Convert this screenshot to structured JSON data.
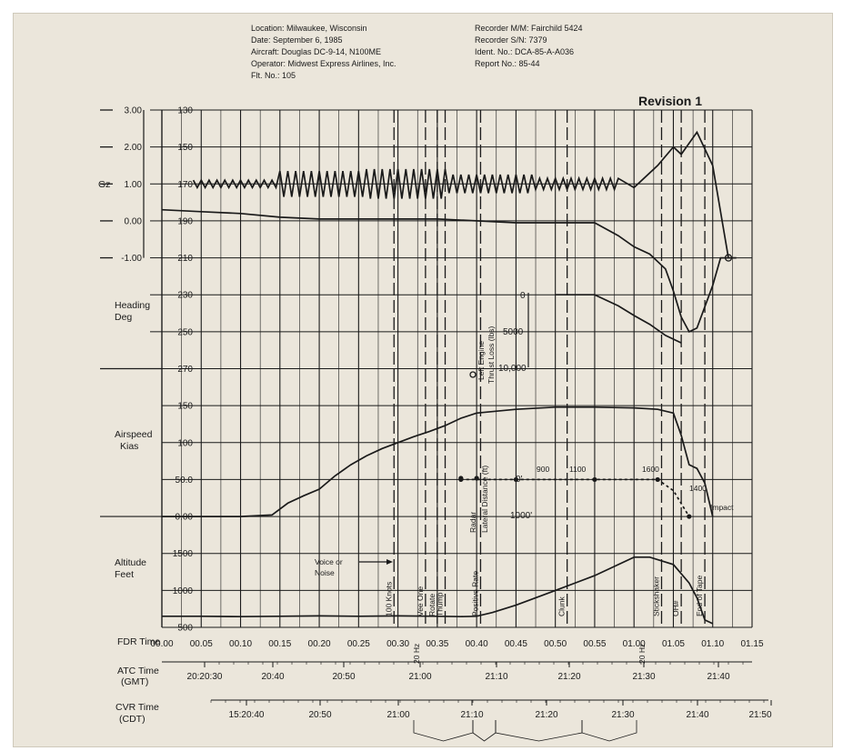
{
  "header": {
    "left": [
      "Location: Milwaukee, Wisconsin",
      "Date: September 6, 1985",
      "Aircraft: Douglas DC-9-14, N100ME",
      "Operator: Midwest Express Airlines, Inc.",
      "Flt. No.: 105"
    ],
    "right": [
      "Recorder M/M: Fairchild 5424",
      "Recorder S/N: 7379",
      "Ident. No.: DCA-85-A-A036",
      "Report No.: 85-44"
    ],
    "revision": "Revision 1"
  },
  "axes": {
    "gz": {
      "label": "Gz",
      "ticks": [
        "3.00",
        "2.00",
        "1.00",
        "0.00",
        "-1.00"
      ]
    },
    "heading": {
      "label_lines": [
        "Heading",
        "Deg"
      ],
      "ticks": [
        "130",
        "150",
        "170",
        "190",
        "210",
        "230",
        "250",
        "270"
      ]
    },
    "airspeed": {
      "label_lines": [
        "Airspeed",
        "Kias"
      ],
      "ticks": [
        "150",
        "100",
        "50.0",
        "0.00"
      ]
    },
    "altitude": {
      "label_lines": [
        "Altitude",
        "Feet"
      ],
      "ticks": [
        "1500",
        "1000",
        "500"
      ]
    },
    "thrust": {
      "label_lines": [
        "Left Engine",
        "Thrust Loss (lbs)"
      ],
      "ticks": [
        "0",
        "5000",
        "10,000"
      ]
    },
    "lateral": {
      "label": "Lateral Distance (ft)",
      "ticks": [
        "0'",
        "1000'"
      ]
    }
  },
  "fdr_time": {
    "label": "FDR Time",
    "ticks": [
      "00.00",
      "00.05",
      "00.10",
      "00.15",
      "00.20",
      "00.25",
      "00.30",
      "00.35",
      "00.40",
      "00.45",
      "00.50",
      "00.55",
      "01.00",
      "01.05",
      "01.10",
      "01.15"
    ]
  },
  "atc_time": {
    "label_lines": [
      "ATC Time",
      "(GMT)"
    ],
    "ticks": [
      "20:20:30",
      "20:40",
      "20:50",
      "21:00",
      "21:10",
      "21:20",
      "21:30",
      "21:40"
    ]
  },
  "cvr_time": {
    "label_lines": [
      "CVR Time",
      "(CDT)"
    ],
    "ticks": [
      "15:20:40",
      "20:50",
      "21:00",
      "21:10",
      "21:20",
      "21:30",
      "21:40",
      "21:50"
    ]
  },
  "events": [
    {
      "label": "100 Knots",
      "t": 29.5
    },
    {
      "label": "Vee One",
      "t": 33.5
    },
    {
      "label": "Rotate",
      "t": 35.0
    },
    {
      "label": "Thump",
      "t": 36.0
    },
    {
      "label": "Positive Rate",
      "t": 40.5
    },
    {
      "label": "Clunk",
      "t": 51.5
    },
    {
      "label": "Stickshaker",
      "t": 63.5
    },
    {
      "label": "OH#",
      "t": 66.0
    },
    {
      "label": "End of Tape",
      "t": 69.0
    }
  ],
  "annotations": {
    "voice": [
      "Voice or",
      "Noise"
    ],
    "radar": "Radar",
    "impact": "Impact",
    "sec_mark": "20 Hz",
    "distances": [
      "900",
      "1100",
      "1600",
      "1400"
    ]
  },
  "chart_data": {
    "type": "line",
    "x_unit": "FDR time (seconds)",
    "xlim": [
      0,
      75
    ],
    "series": [
      {
        "name": "Gz",
        "scale": "gz",
        "x": [
          0,
          5,
          10,
          15,
          20,
          25,
          30,
          35,
          40,
          45,
          50,
          55,
          57,
          60,
          63,
          65,
          66,
          68,
          70,
          72
        ],
        "y": [
          1.0,
          1.0,
          1.0,
          1.0,
          1.0,
          1.0,
          1.0,
          1.0,
          1.0,
          1.0,
          1.0,
          1.0,
          0.6,
          0.9,
          1.5,
          2.0,
          1.8,
          2.4,
          1.5,
          -1.0
        ],
        "oscillation": [
          {
            "from": 4,
            "to": 58,
            "amp": [
              0.1,
              0.35,
              0.4,
              0.25,
              0.15
            ]
          }
        ]
      },
      {
        "name": "Heading",
        "scale": "heading",
        "x": [
          0,
          5,
          10,
          15,
          20,
          25,
          30,
          35,
          40,
          45,
          50,
          55,
          58,
          60,
          62,
          64,
          65,
          66,
          67,
          68,
          70,
          71,
          73
        ],
        "y": [
          184,
          185,
          186,
          188,
          189,
          189,
          189,
          189,
          190,
          191,
          191,
          191,
          198,
          204,
          208,
          216,
          228,
          242,
          250,
          248,
          225,
          210,
          210
        ]
      },
      {
        "name": "Airspeed",
        "scale": "airspeed",
        "x": [
          0,
          5,
          10,
          14,
          16,
          18,
          20,
          22,
          24,
          26,
          28,
          30,
          32,
          34,
          36,
          38,
          40,
          45,
          50,
          55,
          60,
          63,
          65,
          66,
          67,
          68,
          69,
          70
        ],
        "y": [
          0,
          0,
          0,
          2,
          18,
          28,
          37,
          55,
          70,
          82,
          92,
          100,
          108,
          115,
          123,
          133,
          140,
          145,
          148,
          148,
          147,
          145,
          140,
          110,
          70,
          65,
          45,
          0
        ]
      },
      {
        "name": "Altitude",
        "scale": "altitude",
        "x": [
          0,
          5,
          10,
          15,
          20,
          25,
          30,
          35,
          38,
          40,
          42,
          45,
          50,
          55,
          60,
          62,
          65,
          67,
          68,
          69,
          70
        ],
        "y": [
          650,
          650,
          645,
          650,
          655,
          650,
          655,
          650,
          645,
          650,
          700,
          800,
          1000,
          1200,
          1450,
          1450,
          1350,
          1100,
          900,
          600,
          550
        ]
      },
      {
        "name": "Left Engine Thrust Loss",
        "scale": "thrust",
        "x": [
          50,
          55,
          58,
          60,
          62,
          64,
          66
        ],
        "y": [
          0,
          0,
          1500,
          2800,
          4000,
          5500,
          6500
        ]
      },
      {
        "name": "Lateral Distance",
        "scale": "lateral",
        "x": [
          38,
          40,
          45,
          50,
          55,
          60,
          63,
          65,
          67
        ],
        "y": [
          0,
          0,
          0,
          0,
          0,
          0,
          0,
          300,
          1000
        ]
      }
    ],
    "scales": {
      "gz": {
        "ylim": [
          -1.0,
          3.0
        ]
      },
      "heading": {
        "ylim": [
          130,
          270
        ]
      },
      "airspeed": {
        "ylim": [
          0,
          150
        ]
      },
      "altitude": {
        "ylim": [
          500,
          1500
        ]
      },
      "thrust": {
        "ylim": [
          0,
          10000
        ]
      },
      "lateral": {
        "ylim": [
          0,
          1000
        ]
      }
    },
    "grid": true
  },
  "colors": {
    "ink": "#1a1a1a",
    "paper": "#ebe6db"
  }
}
